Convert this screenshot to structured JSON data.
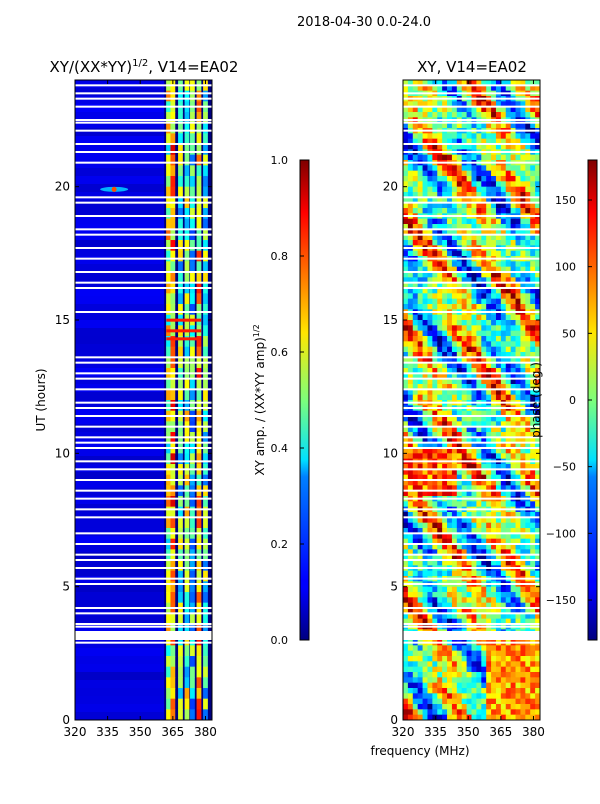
{
  "figure_title": "2018-04-30 0.0-24.0",
  "shared_xlabel": "frequency (MHz)",
  "chart_data": [
    {
      "type": "heatmap",
      "title_main": "XY/(XX*YY)",
      "title_sup": "1/2",
      "title_tail": ", V14=EA02",
      "xlabel": "",
      "ylabel": "UT (hours)",
      "xlim": [
        320,
        383
      ],
      "ylim": [
        0,
        24
      ],
      "xticks": [
        320,
        335,
        350,
        365,
        380
      ],
      "yticks": [
        0,
        5,
        10,
        15,
        20
      ],
      "colorbar": {
        "label": "XY amp. / (XX*YY amp)",
        "label_sup": "1/2",
        "range": [
          0.0,
          1.0
        ],
        "ticks": [
          "0.0",
          "0.2",
          "0.4",
          "0.6",
          "0.8",
          "1.0"
        ]
      },
      "flagged_hours": [
        2.9,
        3.1,
        3.3,
        3.5,
        3.6,
        4.0,
        4.2,
        5.1,
        5.3,
        5.7,
        6.0,
        6.2,
        6.6,
        7.0,
        7.6,
        7.9,
        8.3,
        8.6,
        9.0,
        9.4,
        9.7,
        10.2,
        10.4,
        10.6,
        11.0,
        11.4,
        11.7,
        11.9,
        12.4,
        12.8,
        13.0,
        13.4,
        13.6,
        15.3,
        16.2,
        16.4,
        16.8,
        17.3,
        17.7,
        18.2,
        18.4,
        18.9,
        19.4,
        19.6,
        20.9,
        21.3,
        21.6,
        22.1,
        22.4,
        22.5,
        23.0,
        23.3,
        23.5,
        23.8
      ],
      "bright_channels": [
        {
          "freq": 363.0,
          "level": 0.55
        },
        {
          "freq": 365.0,
          "level": 0.7
        },
        {
          "freq": 368.5,
          "level": 0.45
        },
        {
          "freq": 371.5,
          "level": 0.5
        },
        {
          "freq": 374.0,
          "level": 0.4
        },
        {
          "freq": 377.0,
          "level": 0.65
        },
        {
          "freq": 380.0,
          "level": 0.45
        }
      ]
    },
    {
      "type": "heatmap",
      "title_main": "XY, V14=EA02",
      "xlabel": "",
      "ylabel": "",
      "xlim": [
        320,
        383
      ],
      "ylim": [
        0,
        24
      ],
      "xticks": [
        320,
        335,
        350,
        365,
        380
      ],
      "yticks": [
        0,
        5,
        10,
        15,
        20
      ],
      "colorbar": {
        "label": "phase (deg.)",
        "range": [
          -180,
          180
        ],
        "ticks": [
          "−150",
          "−100",
          "−50",
          "0",
          "50",
          "100",
          "150"
        ]
      },
      "flagged_hours": [
        2.9,
        3.1,
        3.3,
        3.5,
        3.6,
        4.0,
        4.2,
        5.1,
        5.3,
        5.7,
        6.0,
        6.2,
        6.6,
        7.0,
        7.6,
        7.9,
        8.3,
        8.6,
        9.0,
        9.4,
        9.7,
        10.2,
        10.4,
        10.6,
        11.0,
        11.4,
        11.7,
        11.9,
        12.4,
        12.8,
        13.0,
        13.4,
        13.6,
        15.3,
        16.2,
        16.4,
        16.8,
        17.3,
        17.7,
        18.2,
        18.4,
        18.9,
        19.4,
        19.6,
        20.9,
        21.3,
        21.6,
        22.1,
        22.4,
        22.5,
        23.0,
        23.3,
        23.5,
        23.8
      ]
    }
  ]
}
